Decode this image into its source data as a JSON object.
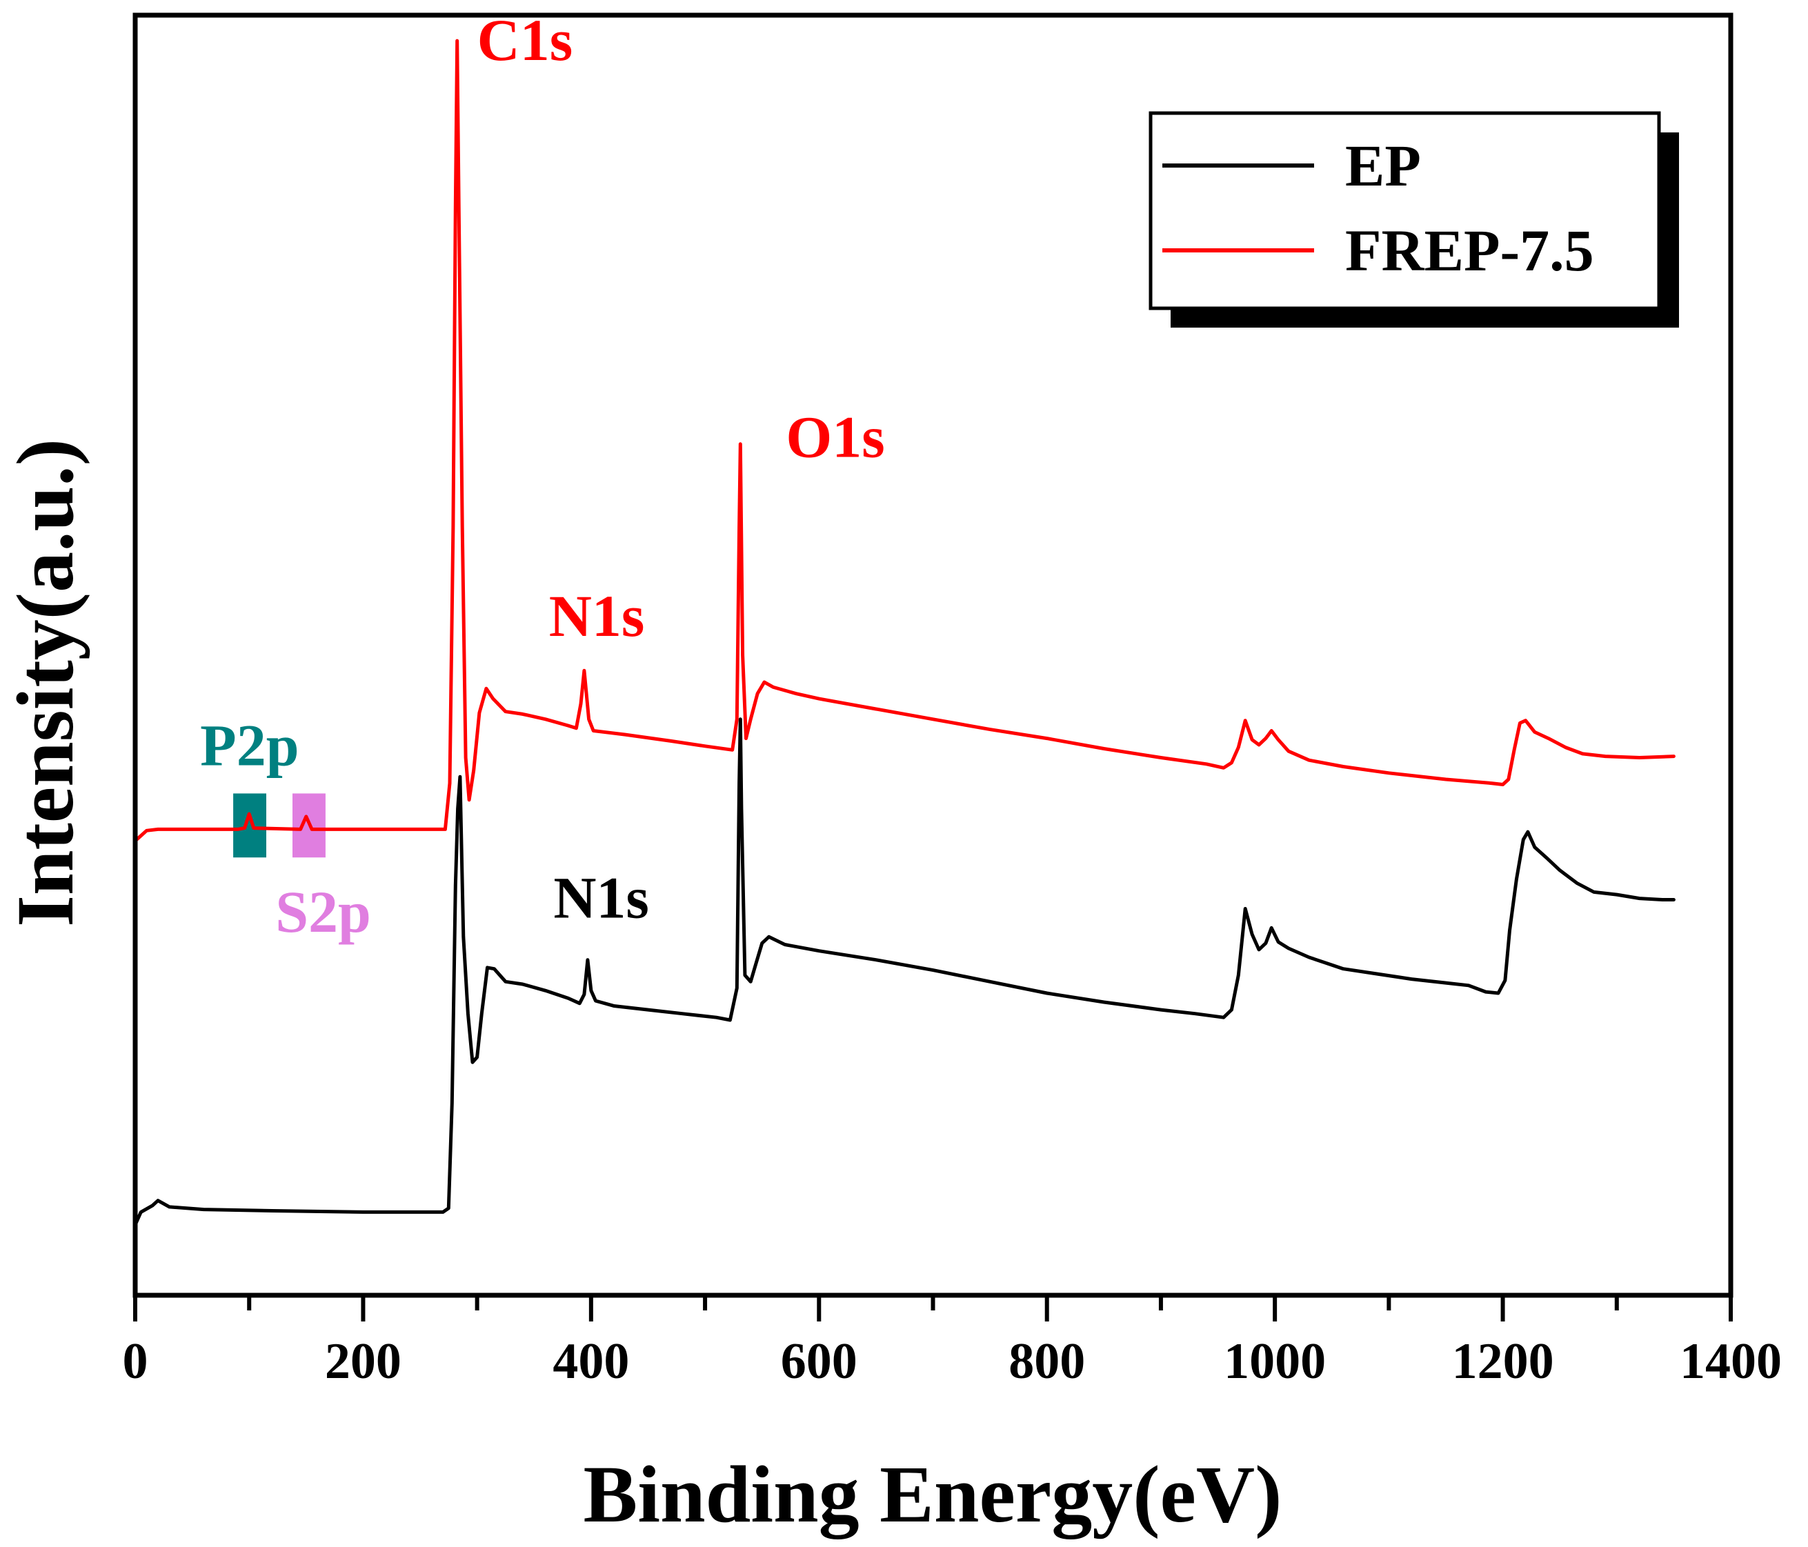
{
  "chart_data": {
    "type": "line",
    "title": "",
    "xlabel": "Binding Energy(eV)",
    "ylabel": "Intensity(a.u.)",
    "xlim": [
      0,
      1400
    ],
    "ylim": [
      0,
      100
    ],
    "x_ticks": [
      0,
      200,
      400,
      600,
      800,
      1000,
      1200,
      1400
    ],
    "x_tick_labels": [
      "0",
      "200",
      "400",
      "600",
      "800",
      "1000",
      "1200",
      "1400"
    ],
    "y_ticks_shown": false,
    "grid": false,
    "legend_position": "top-right",
    "series": [
      {
        "name": "EP",
        "color": "#000000",
        "points": [
          [
            0,
            5.5
          ],
          [
            5,
            6.5
          ],
          [
            15,
            7.0
          ],
          [
            20,
            7.4
          ],
          [
            30,
            6.9
          ],
          [
            60,
            6.7
          ],
          [
            120,
            6.6
          ],
          [
            200,
            6.5
          ],
          [
            270,
            6.5
          ],
          [
            275,
            6.8
          ],
          [
            278,
            15
          ],
          [
            281,
            32
          ],
          [
            283,
            38
          ],
          [
            285,
            40.5
          ],
          [
            288,
            28
          ],
          [
            292,
            22
          ],
          [
            296,
            18.2
          ],
          [
            300,
            18.6
          ],
          [
            304,
            22
          ],
          [
            309,
            25.6
          ],
          [
            315,
            25.5
          ],
          [
            325,
            24.5
          ],
          [
            340,
            24.3
          ],
          [
            360,
            23.8
          ],
          [
            380,
            23.2
          ],
          [
            390,
            22.8
          ],
          [
            394,
            23.5
          ],
          [
            397,
            26.2
          ],
          [
            400,
            23.8
          ],
          [
            404,
            23.0
          ],
          [
            420,
            22.6
          ],
          [
            450,
            22.3
          ],
          [
            480,
            22.0
          ],
          [
            510,
            21.7
          ],
          [
            522,
            21.5
          ],
          [
            528,
            24
          ],
          [
            530,
            40
          ],
          [
            531,
            45
          ],
          [
            532,
            38
          ],
          [
            535,
            25
          ],
          [
            540,
            24.5
          ],
          [
            545,
            26
          ],
          [
            550,
            27.5
          ],
          [
            556,
            28.0
          ],
          [
            570,
            27.4
          ],
          [
            600,
            26.9
          ],
          [
            650,
            26.2
          ],
          [
            700,
            25.4
          ],
          [
            750,
            24.5
          ],
          [
            800,
            23.6
          ],
          [
            850,
            22.9
          ],
          [
            900,
            22.3
          ],
          [
            930,
            22.0
          ],
          [
            955,
            21.7
          ],
          [
            962,
            22.3
          ],
          [
            968,
            25
          ],
          [
            974,
            30.2
          ],
          [
            980,
            28.2
          ],
          [
            986,
            27.0
          ],
          [
            992,
            27.5
          ],
          [
            997,
            28.7
          ],
          [
            1003,
            27.6
          ],
          [
            1012,
            27.1
          ],
          [
            1030,
            26.4
          ],
          [
            1060,
            25.5
          ],
          [
            1090,
            25.1
          ],
          [
            1120,
            24.7
          ],
          [
            1150,
            24.4
          ],
          [
            1170,
            24.2
          ],
          [
            1185,
            23.7
          ],
          [
            1196,
            23.6
          ],
          [
            1202,
            24.6
          ],
          [
            1206,
            28.5
          ],
          [
            1212,
            32.5
          ],
          [
            1218,
            35.6
          ],
          [
            1222,
            36.2
          ],
          [
            1228,
            35.0
          ],
          [
            1238,
            34.2
          ],
          [
            1250,
            33.2
          ],
          [
            1265,
            32.2
          ],
          [
            1280,
            31.5
          ],
          [
            1300,
            31.3
          ],
          [
            1320,
            31.0
          ],
          [
            1340,
            30.9
          ],
          [
            1350,
            30.9
          ]
        ]
      },
      {
        "name": "FREP-7.5",
        "color": "#ff0000",
        "points": [
          [
            0,
            35.5
          ],
          [
            5,
            35.9
          ],
          [
            10,
            36.3
          ],
          [
            20,
            36.4
          ],
          [
            60,
            36.4
          ],
          [
            90,
            36.4
          ],
          [
            96,
            36.5
          ],
          [
            100,
            37.6
          ],
          [
            104,
            36.5
          ],
          [
            145,
            36.4
          ],
          [
            150,
            37.4
          ],
          [
            155,
            36.4
          ],
          [
            200,
            36.4
          ],
          [
            260,
            36.4
          ],
          [
            272,
            36.4
          ],
          [
            276,
            40
          ],
          [
            279,
            60
          ],
          [
            281,
            85
          ],
          [
            282.5,
            98
          ],
          [
            284,
            85
          ],
          [
            287,
            60
          ],
          [
            290,
            42
          ],
          [
            293,
            38.7
          ],
          [
            297,
            41
          ],
          [
            302,
            45.5
          ],
          [
            308,
            47.4
          ],
          [
            314,
            46.6
          ],
          [
            325,
            45.6
          ],
          [
            340,
            45.4
          ],
          [
            360,
            45.0
          ],
          [
            380,
            44.5
          ],
          [
            387,
            44.3
          ],
          [
            391,
            46.2
          ],
          [
            394,
            48.8
          ],
          [
            398,
            45.0
          ],
          [
            402,
            44.1
          ],
          [
            430,
            43.8
          ],
          [
            470,
            43.3
          ],
          [
            500,
            42.9
          ],
          [
            524,
            42.6
          ],
          [
            528,
            45
          ],
          [
            530,
            60
          ],
          [
            531,
            66.5
          ],
          [
            533,
            50
          ],
          [
            536,
            43.5
          ],
          [
            540,
            45
          ],
          [
            546,
            47.0
          ],
          [
            552,
            47.9
          ],
          [
            560,
            47.5
          ],
          [
            580,
            47.0
          ],
          [
            600,
            46.6
          ],
          [
            650,
            45.8
          ],
          [
            700,
            45.0
          ],
          [
            750,
            44.2
          ],
          [
            800,
            43.5
          ],
          [
            850,
            42.7
          ],
          [
            900,
            42.0
          ],
          [
            940,
            41.5
          ],
          [
            955,
            41.2
          ],
          [
            962,
            41.6
          ],
          [
            968,
            42.8
          ],
          [
            974,
            44.9
          ],
          [
            980,
            43.4
          ],
          [
            986,
            43.0
          ],
          [
            992,
            43.5
          ],
          [
            997,
            44.1
          ],
          [
            1003,
            43.4
          ],
          [
            1012,
            42.5
          ],
          [
            1030,
            41.8
          ],
          [
            1060,
            41.3
          ],
          [
            1100,
            40.8
          ],
          [
            1150,
            40.3
          ],
          [
            1190,
            40.0
          ],
          [
            1200,
            39.9
          ],
          [
            1205,
            40.3
          ],
          [
            1210,
            42.6
          ],
          [
            1215,
            44.7
          ],
          [
            1220,
            44.9
          ],
          [
            1228,
            44.0
          ],
          [
            1240,
            43.5
          ],
          [
            1255,
            42.8
          ],
          [
            1270,
            42.3
          ],
          [
            1290,
            42.1
          ],
          [
            1320,
            42.0
          ],
          [
            1350,
            42.1
          ]
        ]
      }
    ],
    "annotations": [
      {
        "text": "C1s",
        "x": 300,
        "y": 96.5,
        "color": "#ff0000"
      },
      {
        "text": "O1s",
        "x": 571,
        "y": 65.5,
        "color": "#ff0000"
      },
      {
        "text": "N1s",
        "x": 363,
        "y": 51.5,
        "color": "#ff0000"
      },
      {
        "text": "P2p",
        "x": 57,
        "y": 41.4,
        "color": "#008080"
      },
      {
        "text": "S2p",
        "x": 123,
        "y": 28.4,
        "color": "#e07ee0"
      },
      {
        "text": "N1s",
        "x": 367,
        "y": 29.5,
        "color": "#000000"
      }
    ],
    "highlight_boxes": [
      {
        "name": "P2p",
        "x_range": [
          86,
          115
        ],
        "y_range": [
          34.2,
          39.2
        ],
        "color": "#008080"
      },
      {
        "name": "S2p",
        "x_range": [
          138,
          167
        ],
        "y_range": [
          34.2,
          39.2
        ],
        "color": "#e07ee0"
      }
    ]
  }
}
